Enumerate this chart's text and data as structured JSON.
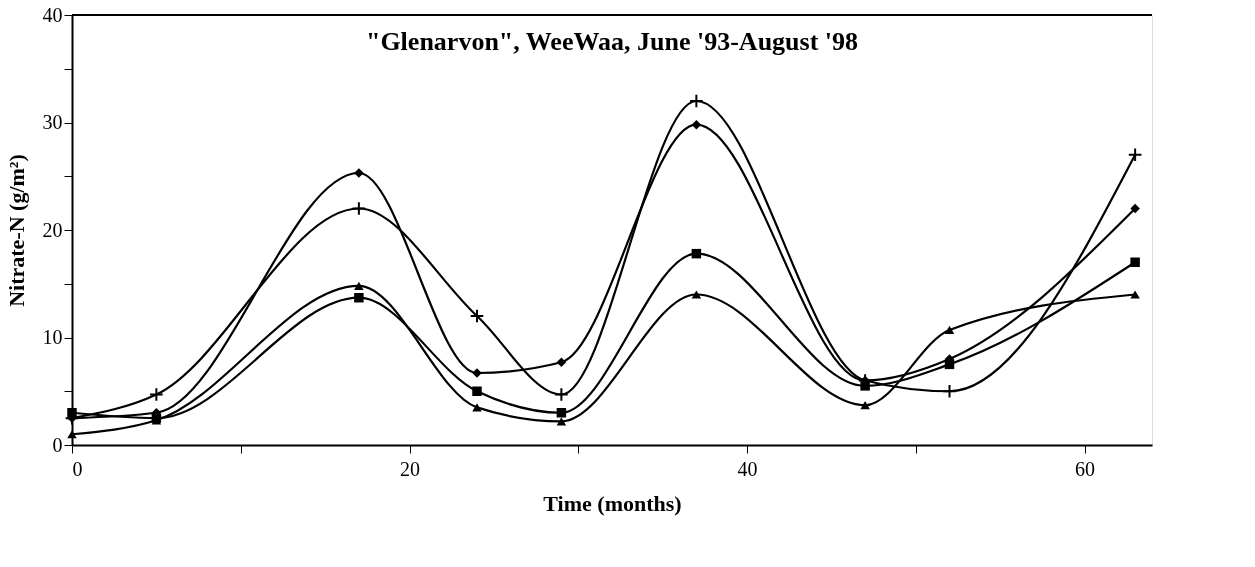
{
  "chart_data": {
    "type": "line",
    "title": "\"Glenarvon\", WeeWaa, June '93-August '98",
    "xlabel": "Time (months)",
    "ylabel": "Nitrate-N (g/m²)",
    "x": [
      0,
      5,
      17,
      24,
      29,
      37,
      47,
      52,
      63
    ],
    "series": [
      {
        "color": "#000000",
        "marker": "cross",
        "values": [
          2.5,
          4.7,
          22,
          12,
          4.7,
          32,
          6,
          5,
          27
        ]
      },
      {
        "color": "#000000",
        "marker": "diamond",
        "values": [
          2.5,
          3,
          25.3,
          6.7,
          7.7,
          29.8,
          6,
          8,
          22
        ]
      },
      {
        "color": "#000000",
        "marker": "square",
        "values": [
          3,
          2.5,
          13.7,
          5,
          3,
          17.8,
          5.5,
          7.5,
          17
        ]
      },
      {
        "color": "#000000",
        "marker": "triangle",
        "values": [
          1,
          2.3,
          14.8,
          3.5,
          2.2,
          14,
          3.7,
          10.7,
          14
        ]
      }
    ],
    "xlim": [
      0,
      64
    ],
    "ylim": [
      0,
      40
    ],
    "xticks": [
      0,
      {
        "value": 10,
        "label": null
      },
      20,
      {
        "value": 30,
        "label": null
      },
      40,
      {
        "value": 50,
        "label": null
      },
      60
    ],
    "yticks": [
      0,
      {
        "value": 5,
        "label": null
      },
      10,
      {
        "value": 15,
        "label": null
      },
      20,
      {
        "value": 25,
        "label": null
      },
      30,
      {
        "value": 35,
        "label": null
      },
      40
    ],
    "grid": false,
    "line_style": "solid"
  }
}
